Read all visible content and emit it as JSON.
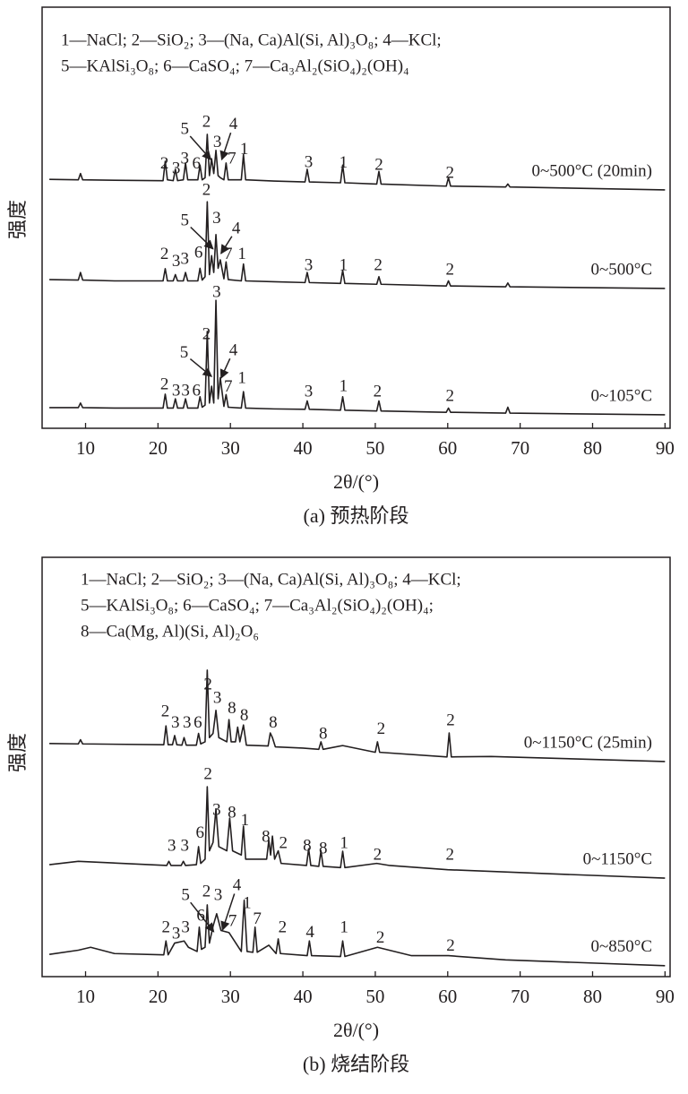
{
  "chart_data": [
    {
      "type": "line",
      "caption": "(a) 预热阶段",
      "xlabel": "2θ/(°)",
      "ylabel": "强度",
      "legend_lines": [
        "1—NaCl; 2—SiO₂; 3—(Na, Ca)Al(Si, Al)₃O₈; 4—KCl;",
        "5—KAlSi₃O₈; 6—CaSO₄; 7—Ca₃Al₂(SiO₄)₂(OH)₄"
      ],
      "xlim": [
        4,
        90.7
      ],
      "ylim": [
        0,
        100
      ],
      "xticks": [
        10,
        20,
        30,
        40,
        50,
        60,
        70,
        80,
        90
      ],
      "series": [
        {
          "name": "0~500°C (20min)",
          "color": "#231f20",
          "x": [
            5,
            9,
            9.3,
            9.6,
            14,
            20.7,
            21,
            21.3,
            22.1,
            22.4,
            22.7,
            23.5,
            23.8,
            24.1,
            25.5,
            25.8,
            26.1,
            26.5,
            26.8,
            27.1,
            27.4,
            27.7,
            28,
            28.3,
            28.6,
            29.1,
            29.4,
            29.7,
            31.5,
            31.8,
            32.1,
            36,
            40.3,
            40.6,
            40.9,
            45.2,
            45.5,
            45.8,
            50.2,
            50.5,
            50.8,
            59.8,
            60.1,
            60.4,
            68,
            68.3,
            68.6,
            90
          ],
          "values": [
            59.1,
            59,
            60.5,
            59,
            58.9,
            58.8,
            63.4,
            59,
            58.8,
            61.5,
            58.8,
            59,
            63,
            59,
            59,
            62.5,
            59,
            59.5,
            69.8,
            60,
            64,
            60.5,
            66,
            60,
            59.5,
            59,
            63,
            59,
            59,
            65,
            59,
            58.7,
            58.5,
            61.5,
            58.5,
            58.3,
            62.5,
            58.3,
            58,
            61,
            58,
            57.5,
            59.5,
            57.5,
            57.3,
            58,
            57.3,
            56.6
          ]
        },
        {
          "name": "0~500°C",
          "color": "#231f20",
          "x": [
            5,
            9,
            9.3,
            9.6,
            14,
            20.7,
            21,
            21.3,
            22.1,
            22.4,
            22.7,
            23.5,
            23.8,
            24.1,
            25.5,
            25.8,
            26.1,
            26.5,
            26.8,
            27.1,
            27.4,
            27.7,
            28,
            28.3,
            28.6,
            29.1,
            29.4,
            29.7,
            31.5,
            31.8,
            32.1,
            36,
            40.3,
            40.6,
            40.9,
            45.2,
            45.5,
            45.8,
            50.2,
            50.5,
            50.8,
            59.8,
            60.1,
            60.4,
            68,
            68.3,
            68.6,
            90
          ],
          "values": [
            35.3,
            35.2,
            37,
            35.2,
            35,
            35,
            37.9,
            35,
            35,
            36.5,
            35,
            35,
            37,
            35,
            35,
            38,
            35.2,
            36,
            53.8,
            36.5,
            41,
            37,
            46,
            38,
            40,
            35.5,
            39.5,
            35.3,
            35,
            39,
            35,
            34.8,
            34.6,
            37,
            34.6,
            34.4,
            37.5,
            34.4,
            34.2,
            36,
            34.2,
            33.8,
            35,
            33.8,
            33.6,
            34.5,
            33.6,
            33.2
          ]
        },
        {
          "name": "0~105°C",
          "color": "#231f20",
          "x": [
            5,
            9,
            9.3,
            9.6,
            14,
            20.7,
            21,
            21.3,
            22.1,
            22.4,
            22.7,
            23.5,
            23.8,
            24.1,
            25.5,
            25.8,
            26.1,
            26.5,
            26.8,
            27.1,
            27.4,
            27.7,
            28,
            28.3,
            28.6,
            29.1,
            29.4,
            29.7,
            31.5,
            31.8,
            32.1,
            36,
            40.3,
            40.6,
            40.9,
            45.2,
            45.5,
            45.8,
            50.2,
            50.5,
            50.8,
            59.8,
            60.1,
            60.4,
            68,
            68.3,
            68.6,
            90
          ],
          "values": [
            4.9,
            4.9,
            6,
            4.9,
            4.8,
            4.8,
            8.1,
            4.8,
            4.8,
            7,
            4.8,
            4.8,
            7,
            4.8,
            4.8,
            7.5,
            5,
            5.5,
            23,
            6,
            10,
            6,
            30.4,
            7,
            12,
            5.2,
            8,
            5,
            4.8,
            8.7,
            4.8,
            4.6,
            4.5,
            6.5,
            4.5,
            4.3,
            7.5,
            4.3,
            4.1,
            6.5,
            4.1,
            3.8,
            4.8,
            3.8,
            3.6,
            5,
            3.6,
            3.2
          ]
        }
      ],
      "annotations": [
        {
          "text": "2",
          "x": 20.9,
          "y": 62.6
        },
        {
          "text": "3",
          "x": 22.5,
          "y": 61.5
        },
        {
          "text": "3",
          "x": 23.7,
          "y": 63.8
        },
        {
          "text": "6",
          "x": 25.3,
          "y": 62.6
        },
        {
          "text": "5",
          "x": 23.7,
          "y": 70.8,
          "arrow": [
            27.3,
            63.8
          ]
        },
        {
          "text": "2",
          "x": 26.7,
          "y": 72.5
        },
        {
          "text": "4",
          "x": 30.4,
          "y": 72,
          "arrow": [
            28.8,
            63.8
          ]
        },
        {
          "text": "3",
          "x": 28.2,
          "y": 67.7
        },
        {
          "text": "7",
          "x": 30.2,
          "y": 63.8
        },
        {
          "text": "1",
          "x": 31.9,
          "y": 66
        },
        {
          "text": "3",
          "x": 40.8,
          "y": 63
        },
        {
          "text": "1",
          "x": 45.6,
          "y": 62.8
        },
        {
          "text": "2",
          "x": 50.5,
          "y": 62.3
        },
        {
          "text": "2",
          "x": 60.3,
          "y": 60.4
        },
        {
          "text": "2",
          "x": 26.7,
          "y": 56.4
        },
        {
          "text": "5",
          "x": 23.7,
          "y": 49.1,
          "arrow": [
            27.6,
            42.6
          ]
        },
        {
          "text": "3",
          "x": 28.1,
          "y": 49.6
        },
        {
          "text": "4",
          "x": 30.8,
          "y": 47.2,
          "arrow": [
            28.7,
            41.5
          ]
        },
        {
          "text": "6",
          "x": 25.6,
          "y": 41.5
        },
        {
          "text": "7",
          "x": 29.7,
          "y": 41.1
        },
        {
          "text": "1",
          "x": 31.6,
          "y": 41.1
        },
        {
          "text": "2",
          "x": 20.9,
          "y": 41.1
        },
        {
          "text": "3",
          "x": 22.5,
          "y": 39.4
        },
        {
          "text": "3",
          "x": 23.7,
          "y": 40
        },
        {
          "text": "3",
          "x": 40.8,
          "y": 38.5
        },
        {
          "text": "1",
          "x": 45.6,
          "y": 38.5
        },
        {
          "text": "2",
          "x": 50.4,
          "y": 38.5
        },
        {
          "text": "2",
          "x": 60.3,
          "y": 37.4
        },
        {
          "text": "3",
          "x": 28.1,
          "y": 32.1
        },
        {
          "text": "2",
          "x": 26.7,
          "y": 22.1
        },
        {
          "text": "5",
          "x": 23.6,
          "y": 17.7,
          "arrow": [
            27.4,
            12.3
          ]
        },
        {
          "text": "4",
          "x": 30.4,
          "y": 18.3,
          "arrow": [
            28.7,
            11.9
          ]
        },
        {
          "text": "6",
          "x": 25.3,
          "y": 8.7
        },
        {
          "text": "7",
          "x": 29.7,
          "y": 9.6
        },
        {
          "text": "1",
          "x": 31.6,
          "y": 11.7
        },
        {
          "text": "2",
          "x": 20.9,
          "y": 10.2
        },
        {
          "text": "3",
          "x": 22.5,
          "y": 8.7
        },
        {
          "text": "3",
          "x": 23.8,
          "y": 8.7
        },
        {
          "text": "3",
          "x": 40.8,
          "y": 8.5
        },
        {
          "text": "1",
          "x": 45.6,
          "y": 9.8
        },
        {
          "text": "2",
          "x": 50.3,
          "y": 8.5
        },
        {
          "text": "2",
          "x": 60.3,
          "y": 7.4
        }
      ]
    },
    {
      "type": "line",
      "caption": "(b) 烧结阶段",
      "xlabel": "2θ/(°)",
      "ylabel": "强度",
      "legend_lines": [
        "1—NaCl; 2—SiO₂; 3—(Na, Ca)Al(Si, Al)₃O₈; 4—KCl;",
        "5—KAlSi₃O₈; 6—CaSO₄; 7—Ca₃Al₂(SiO₄)₂(OH)₄;",
        "8—Ca(Mg, Al)(Si, Al)₂O₆"
      ],
      "xlim": [
        4,
        90.7
      ],
      "ylim": [
        0,
        100
      ],
      "xticks": [
        10,
        20,
        30,
        40,
        50,
        60,
        70,
        80,
        90
      ],
      "series": [
        {
          "name": "0~1150°C (25min)",
          "color": "#231f20",
          "x": [
            5,
            9,
            9.3,
            9.6,
            20.8,
            21.1,
            21.4,
            22,
            22.3,
            22.6,
            23.3,
            23.6,
            23.9,
            25.3,
            25.6,
            25.9,
            26.5,
            26.8,
            27.1,
            27.6,
            28,
            28.4,
            29.5,
            29.8,
            30.1,
            30.7,
            31,
            31.3,
            31.8,
            32.2,
            35.2,
            35.5,
            35.8,
            36.2,
            40,
            42.2,
            42.5,
            42.8,
            45.5,
            50,
            50.3,
            50.6,
            59.9,
            60.2,
            60.5,
            66,
            90
          ],
          "values": [
            55.6,
            55.5,
            56.5,
            55.5,
            55.3,
            59.8,
            55.3,
            55.3,
            57.5,
            55.3,
            55.2,
            57,
            55.2,
            55.2,
            58,
            55.5,
            56,
            73.1,
            57,
            58,
            63.5,
            57,
            56,
            61.3,
            56,
            56,
            59.5,
            56,
            60,
            55.2,
            55,
            58.1,
            57,
            54.8,
            54.5,
            54.2,
            56,
            54.2,
            55.1,
            53.5,
            56,
            53.5,
            52.4,
            58.1,
            52.4,
            52.5,
            51.3
          ]
        },
        {
          "name": "0~1150°C",
          "color": "#231f20",
          "x": [
            5,
            9,
            21.2,
            21.5,
            21.8,
            23.2,
            23.5,
            23.8,
            25.3,
            25.6,
            25.9,
            26.5,
            26.8,
            27.1,
            27.6,
            28,
            28.4,
            29.5,
            29.9,
            30.3,
            31.5,
            31.8,
            32.1,
            35,
            35.3,
            35.55,
            35.8,
            36.1,
            36.6,
            37,
            40.5,
            40.8,
            41.1,
            42.2,
            42.5,
            42.8,
            45.2,
            45.5,
            45.8,
            50.2,
            52,
            60,
            74.5,
            90
          ],
          "values": [
            26.7,
            27.5,
            26.5,
            27.5,
            26.5,
            26.5,
            27.5,
            26.5,
            26.7,
            31,
            27,
            28,
            45.3,
            30,
            32,
            40,
            31,
            30,
            37.8,
            30,
            29,
            35.9,
            28,
            28,
            32.5,
            29,
            33.5,
            28,
            30,
            27,
            26.5,
            30.5,
            26.5,
            26.3,
            30,
            26.3,
            26,
            29.9,
            26,
            27,
            26.5,
            25.5,
            24.5,
            23.5
          ]
        },
        {
          "name": "0~850°C",
          "color": "#231f20",
          "x": [
            5,
            9,
            10.7,
            14,
            20.8,
            21.1,
            21.4,
            22.3,
            23.6,
            24.2,
            25.4,
            25.7,
            26,
            26.5,
            26.8,
            27.1,
            27.6,
            28.1,
            28.7,
            29.8,
            31.5,
            31.9,
            32.3,
            33.1,
            33.4,
            33.7,
            35.3,
            36.3,
            36.6,
            36.9,
            40.6,
            40.9,
            41.2,
            45.2,
            45.5,
            45.8,
            50.3,
            55,
            60.1,
            68,
            90
          ],
          "values": [
            5.3,
            6.3,
            7,
            5.5,
            5.2,
            8.5,
            5.2,
            8,
            8.5,
            7,
            6,
            11.8,
            6.5,
            7,
            17.1,
            8,
            12,
            15,
            11,
            10.5,
            6,
            18.2,
            6,
            5.8,
            11.8,
            5.8,
            7.5,
            5.5,
            9,
            5.5,
            5,
            8.5,
            5,
            4.8,
            8.5,
            4.8,
            7,
            5,
            5,
            4,
            2.6
          ]
        }
      ],
      "annotations": [
        {
          "text": "2",
          "x": 26.9,
          "y": 69.4
        },
        {
          "text": "2",
          "x": 21,
          "y": 63
        },
        {
          "text": "3",
          "x": 22.4,
          "y": 60.3
        },
        {
          "text": "3",
          "x": 24,
          "y": 60.3
        },
        {
          "text": "6",
          "x": 25.5,
          "y": 60.3
        },
        {
          "text": "3",
          "x": 28.2,
          "y": 66.2
        },
        {
          "text": "8",
          "x": 30.2,
          "y": 63.7
        },
        {
          "text": "8",
          "x": 31.9,
          "y": 62
        },
        {
          "text": "8",
          "x": 35.9,
          "y": 60.3
        },
        {
          "text": "8",
          "x": 42.8,
          "y": 57.7
        },
        {
          "text": "2",
          "x": 50.8,
          "y": 58.8
        },
        {
          "text": "2",
          "x": 60.4,
          "y": 60.9
        },
        {
          "text": "2",
          "x": 26.9,
          "y": 48.1
        },
        {
          "text": "3",
          "x": 28.1,
          "y": 39.5
        },
        {
          "text": "8",
          "x": 30.2,
          "y": 38.9
        },
        {
          "text": "1",
          "x": 32,
          "y": 37
        },
        {
          "text": "8",
          "x": 34.9,
          "y": 33.1
        },
        {
          "text": "2",
          "x": 37.3,
          "y": 31.6
        },
        {
          "text": "8",
          "x": 40.6,
          "y": 31
        },
        {
          "text": "8",
          "x": 42.8,
          "y": 30.3
        },
        {
          "text": "1",
          "x": 45.7,
          "y": 31.6
        },
        {
          "text": "3",
          "x": 21.9,
          "y": 31
        },
        {
          "text": "3",
          "x": 23.7,
          "y": 31
        },
        {
          "text": "6",
          "x": 25.8,
          "y": 34
        },
        {
          "text": "2",
          "x": 50.3,
          "y": 28.8
        },
        {
          "text": "2",
          "x": 60.3,
          "y": 28.8
        },
        {
          "text": "5",
          "x": 23.8,
          "y": 19.2,
          "arrow": [
            27.7,
            10.7
          ]
        },
        {
          "text": "2",
          "x": 26.7,
          "y": 20.1
        },
        {
          "text": "3",
          "x": 28.3,
          "y": 19.2
        },
        {
          "text": "4",
          "x": 30.9,
          "y": 21.6,
          "arrow": [
            28.9,
            11.1
          ]
        },
        {
          "text": "6",
          "x": 25.9,
          "y": 14.3
        },
        {
          "text": "1",
          "x": 32.3,
          "y": 17.3
        },
        {
          "text": "7",
          "x": 30.3,
          "y": 13
        },
        {
          "text": "7",
          "x": 33.7,
          "y": 13.5
        },
        {
          "text": "2",
          "x": 37.2,
          "y": 11.5
        },
        {
          "text": "4",
          "x": 41,
          "y": 10.3
        },
        {
          "text": "1",
          "x": 45.7,
          "y": 11.5
        },
        {
          "text": "2",
          "x": 21.1,
          "y": 11.5
        },
        {
          "text": "3",
          "x": 22.5,
          "y": 10
        },
        {
          "text": "3",
          "x": 23.8,
          "y": 11.5
        },
        {
          "text": "2",
          "x": 50.7,
          "y": 9
        },
        {
          "text": "2",
          "x": 60.4,
          "y": 7.1
        }
      ]
    }
  ]
}
